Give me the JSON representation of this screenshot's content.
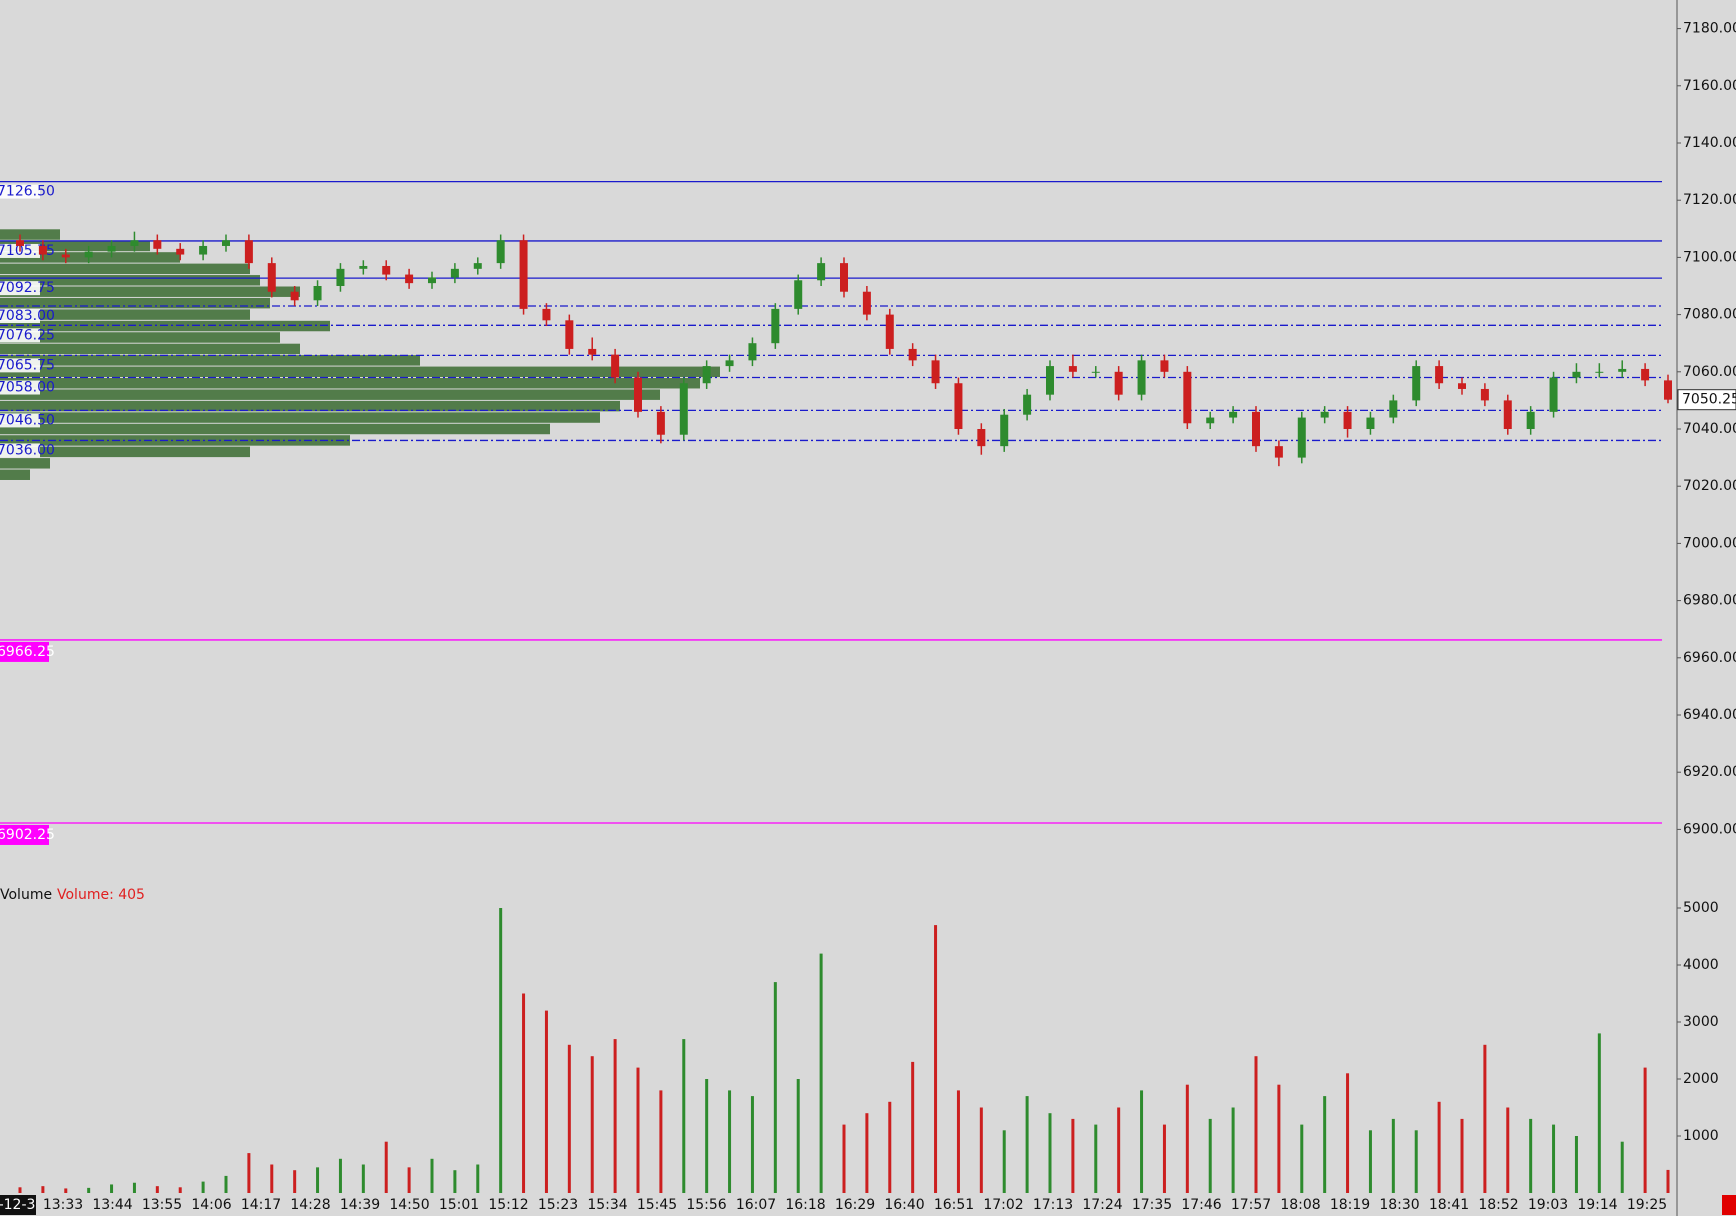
{
  "chart_data": {
    "type": "candlestick",
    "up_color": "#2e8b2e",
    "down_color": "#cc1f1f",
    "ylim": [
      6880,
      7190
    ],
    "yticks": [
      {
        "value": 7180,
        "label": "7180.00"
      },
      {
        "value": 7160,
        "label": "7160.00"
      },
      {
        "value": 7140,
        "label": "7140.00"
      },
      {
        "value": 7120,
        "label": "7120.00"
      },
      {
        "value": 7100,
        "label": "7100.00"
      },
      {
        "value": 7080,
        "label": "7080.00"
      },
      {
        "value": 7060,
        "label": "7060.00"
      },
      {
        "value": 7040,
        "label": "7040.00"
      },
      {
        "value": 7020,
        "label": "7020.00"
      },
      {
        "value": 7000,
        "label": "7000.00"
      },
      {
        "value": 6980,
        "label": "6980.00"
      },
      {
        "value": 6960,
        "label": "6960.00"
      },
      {
        "value": 6940,
        "label": "6940.00"
      },
      {
        "value": 6920,
        "label": "6920.00"
      },
      {
        "value": 6900,
        "label": "6900.00"
      }
    ],
    "last_price": 7050.25,
    "xtick_labels": [
      "-12-3",
      "13:33",
      "13:44",
      "13:55",
      "14:06",
      "14:17",
      "14:28",
      "14:39",
      "14:50",
      "15:01",
      "15:12",
      "15:23",
      "15:34",
      "15:45",
      "15:56",
      "16:07",
      "16:18",
      "16:29",
      "16:40",
      "16:51",
      "17:02",
      "17:13",
      "17:24",
      "17:35",
      "17:46",
      "17:57",
      "18:08",
      "18:19",
      "18:30",
      "18:41",
      "18:52",
      "19:03",
      "19:14",
      "19:25"
    ],
    "levels": [
      {
        "value": 7126.5,
        "label": "7126.50",
        "style": "solid",
        "color": "#1a1acc"
      },
      {
        "value": 7105.75,
        "label": "7105.75",
        "style": "solid",
        "color": "#1a1acc"
      },
      {
        "value": 7092.75,
        "label": "7092.75",
        "style": "solid",
        "color": "#1a1acc"
      },
      {
        "value": 7083,
        "label": "7083.00",
        "style": "dashdot",
        "color": "#1a1acc"
      },
      {
        "value": 7076.25,
        "label": "7076.25",
        "style": "dashdot",
        "color": "#1a1acc"
      },
      {
        "value": 7065.75,
        "label": "7065.75",
        "style": "dashdot",
        "color": "#1a1acc"
      },
      {
        "value": 7058,
        "label": "7058.00",
        "style": "dashdot",
        "color": "#1a1acc"
      },
      {
        "value": 7046.5,
        "label": "7046.50",
        "style": "dashdot",
        "color": "#1a1acc"
      },
      {
        "value": 7036,
        "label": "7036.00",
        "style": "dashdot",
        "color": "#1a1acc"
      },
      {
        "value": 6966.25,
        "label": "6966.25",
        "style": "solid",
        "color": "#ff00ff"
      },
      {
        "value": 6902.25,
        "label": "6902.25",
        "style": "solid",
        "color": "#ff00ff"
      }
    ],
    "volume_profile": {
      "color": "#3a6b30",
      "prices": [
        7024,
        7028,
        7032,
        7036,
        7040,
        7044,
        7048,
        7052,
        7056,
        7060,
        7064,
        7068,
        7072,
        7076,
        7080,
        7084,
        7088,
        7092,
        7096,
        7100,
        7104,
        7108
      ],
      "values": [
        30,
        50,
        250,
        350,
        550,
        600,
        620,
        660,
        700,
        720,
        420,
        300,
        280,
        330,
        250,
        270,
        300,
        260,
        250,
        180,
        150,
        60
      ]
    },
    "ohlc": [
      [
        7106,
        7108,
        7102,
        7104
      ],
      [
        7104,
        7106,
        7099,
        7101
      ],
      [
        7101,
        7103,
        7098,
        7100
      ],
      [
        7100,
        7104,
        7098,
        7102
      ],
      [
        7102,
        7106,
        7100,
        7104
      ],
      [
        7104,
        7109,
        7102,
        7106
      ],
      [
        7106,
        7108,
        7101,
        7103
      ],
      [
        7103,
        7105,
        7099,
        7101
      ],
      [
        7101,
        7106,
        7099,
        7104
      ],
      [
        7104,
        7108,
        7102,
        7106
      ],
      [
        7106,
        7108,
        7096,
        7098
      ],
      [
        7098,
        7100,
        7086,
        7088
      ],
      [
        7088,
        7090,
        7083,
        7085
      ],
      [
        7085,
        7092,
        7083,
        7090
      ],
      [
        7090,
        7098,
        7088,
        7096
      ],
      [
        7096,
        7099,
        7094,
        7097
      ],
      [
        7097,
        7099,
        7092,
        7094
      ],
      [
        7094,
        7096,
        7089,
        7091
      ],
      [
        7091,
        7095,
        7089,
        7093
      ],
      [
        7093,
        7098,
        7091,
        7096
      ],
      [
        7096,
        7100,
        7094,
        7098
      ],
      [
        7098,
        7108,
        7096,
        7106
      ],
      [
        7106,
        7108,
        7080,
        7082
      ],
      [
        7082,
        7084,
        7076,
        7078
      ],
      [
        7078,
        7080,
        7066,
        7068
      ],
      [
        7068,
        7072,
        7064,
        7066
      ],
      [
        7066,
        7068,
        7056,
        7058
      ],
      [
        7058,
        7060,
        7044,
        7046
      ],
      [
        7046,
        7048,
        7035,
        7038
      ],
      [
        7038,
        7058,
        7036,
        7056
      ],
      [
        7056,
        7064,
        7054,
        7062
      ],
      [
        7062,
        7066,
        7060,
        7064
      ],
      [
        7064,
        7072,
        7062,
        7070
      ],
      [
        7070,
        7084,
        7068,
        7082
      ],
      [
        7082,
        7094,
        7080,
        7092
      ],
      [
        7092,
        7100,
        7090,
        7098
      ],
      [
        7098,
        7100,
        7086,
        7088
      ],
      [
        7088,
        7090,
        7078,
        7080
      ],
      [
        7080,
        7082,
        7066,
        7068
      ],
      [
        7068,
        7070,
        7062,
        7064
      ],
      [
        7064,
        7066,
        7054,
        7056
      ],
      [
        7056,
        7058,
        7038,
        7040
      ],
      [
        7040,
        7042,
        7031,
        7034
      ],
      [
        7034,
        7047,
        7032,
        7045
      ],
      [
        7045,
        7054,
        7043,
        7052
      ],
      [
        7052,
        7064,
        7050,
        7062
      ],
      [
        7062,
        7066,
        7058,
        7060
      ],
      [
        7060,
        7062,
        7058,
        7060
      ],
      [
        7060,
        7062,
        7050,
        7052
      ],
      [
        7052,
        7066,
        7050,
        7064
      ],
      [
        7064,
        7066,
        7058,
        7060
      ],
      [
        7060,
        7062,
        7040,
        7042
      ],
      [
        7042,
        7046,
        7040,
        7044
      ],
      [
        7044,
        7048,
        7042,
        7046
      ],
      [
        7046,
        7048,
        7032,
        7034
      ],
      [
        7034,
        7036,
        7027,
        7030
      ],
      [
        7030,
        7046,
        7028,
        7044
      ],
      [
        7044,
        7048,
        7042,
        7046
      ],
      [
        7046,
        7048,
        7037,
        7040
      ],
      [
        7040,
        7046,
        7038,
        7044
      ],
      [
        7044,
        7052,
        7042,
        7050
      ],
      [
        7050,
        7064,
        7048,
        7062
      ],
      [
        7062,
        7064,
        7054,
        7056
      ],
      [
        7056,
        7058,
        7052,
        7054
      ],
      [
        7054,
        7056,
        7048,
        7050
      ],
      [
        7050,
        7052,
        7038,
        7040
      ],
      [
        7040,
        7048,
        7038,
        7046
      ],
      [
        7046,
        7060,
        7044,
        7058
      ],
      [
        7058,
        7063,
        7056,
        7060
      ],
      [
        7060,
        7063,
        7058,
        7060
      ],
      [
        7060,
        7064,
        7058,
        7061
      ],
      [
        7061,
        7063,
        7055,
        7057
      ],
      [
        7057,
        7059,
        7049,
        7050.25
      ]
    ],
    "volume": {
      "title": "Volume",
      "label": "Volume: 405",
      "ylim": [
        0,
        5600
      ],
      "yticks": [
        1000,
        2000,
        3000,
        4000,
        5000
      ],
      "values": [
        100,
        120,
        80,
        90,
        150,
        180,
        120,
        100,
        200,
        300,
        700,
        500,
        400,
        450,
        600,
        500,
        900,
        450,
        600,
        400,
        500,
        5000,
        3500,
        3200,
        2600,
        2400,
        2700,
        2200,
        1800,
        2700,
        2000,
        1800,
        1700,
        3700,
        2000,
        4200,
        1200,
        1400,
        1600,
        2300,
        4700,
        1800,
        1500,
        1100,
        1700,
        1400,
        1300,
        1200,
        1500,
        1800,
        1200,
        1900,
        1300,
        1500,
        2400,
        1900,
        1200,
        1700,
        2100,
        1100,
        1300,
        1100,
        1600,
        1300,
        2600,
        1500,
        1300,
        1200,
        1000,
        2800,
        900,
        2200,
        405
      ]
    }
  }
}
